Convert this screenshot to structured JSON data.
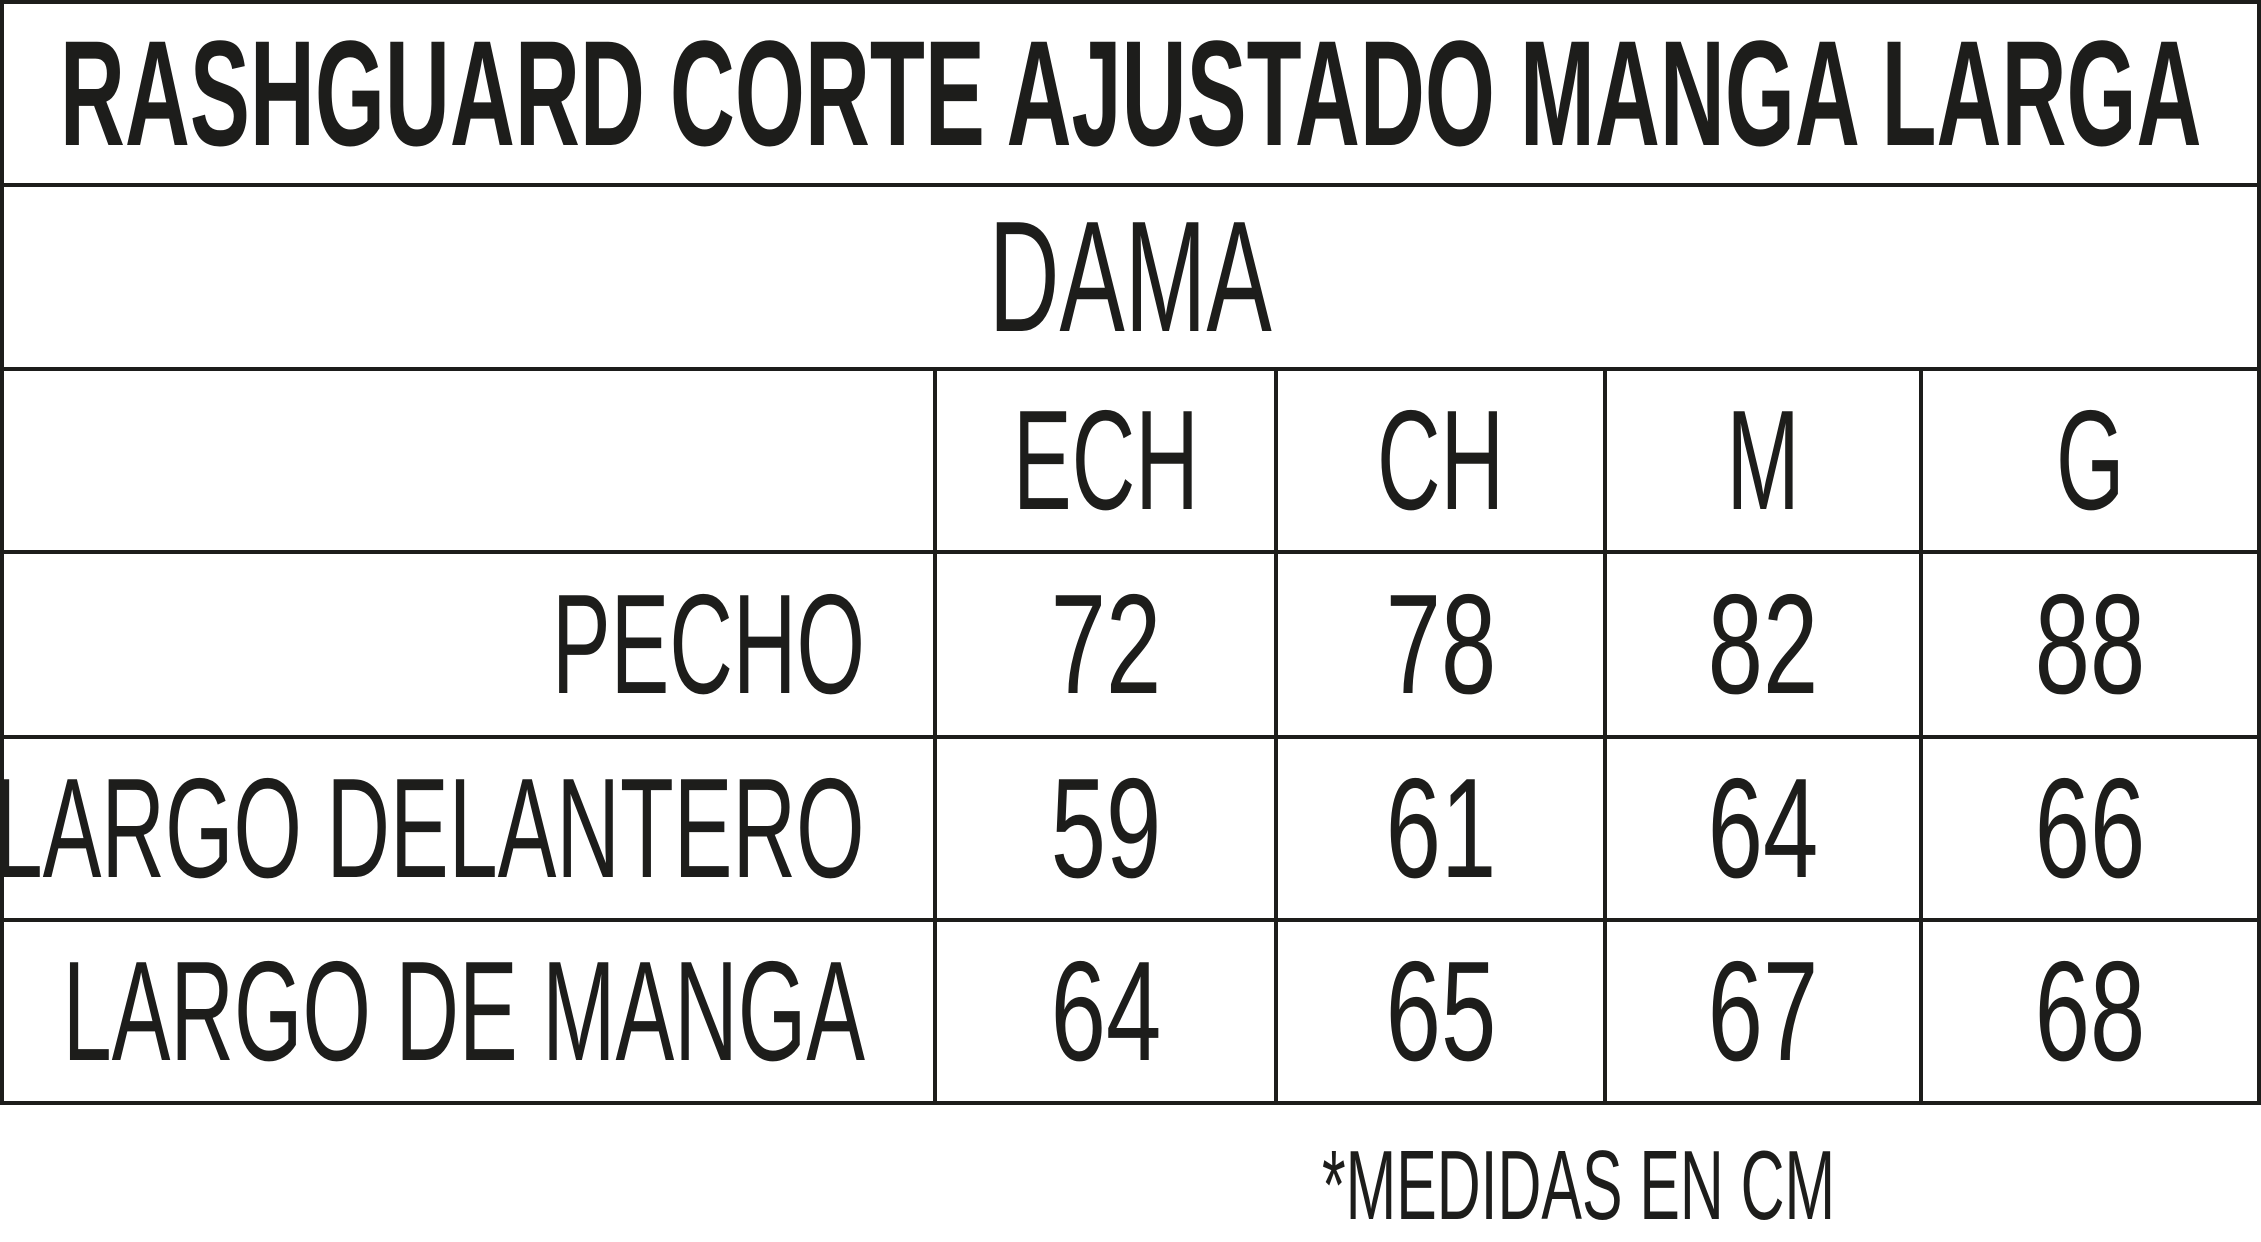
{
  "title": "RASHGUARD CORTE AJUSTADO MANGA LARGA",
  "subtitle": "DAMA",
  "table": {
    "columns": [
      "ECH",
      "CH",
      "M",
      "G"
    ],
    "rows": [
      {
        "label": "PECHO",
        "values": [
          "72",
          "78",
          "82",
          "88"
        ]
      },
      {
        "label": "LARGO DELANTERO",
        "values": [
          "59",
          "61",
          "64",
          "66"
        ]
      },
      {
        "label": "LARGO DE MANGA",
        "values": [
          "64",
          "65",
          "67",
          "68"
        ]
      }
    ]
  },
  "footnote": "*MEDIDAS EN CM"
}
